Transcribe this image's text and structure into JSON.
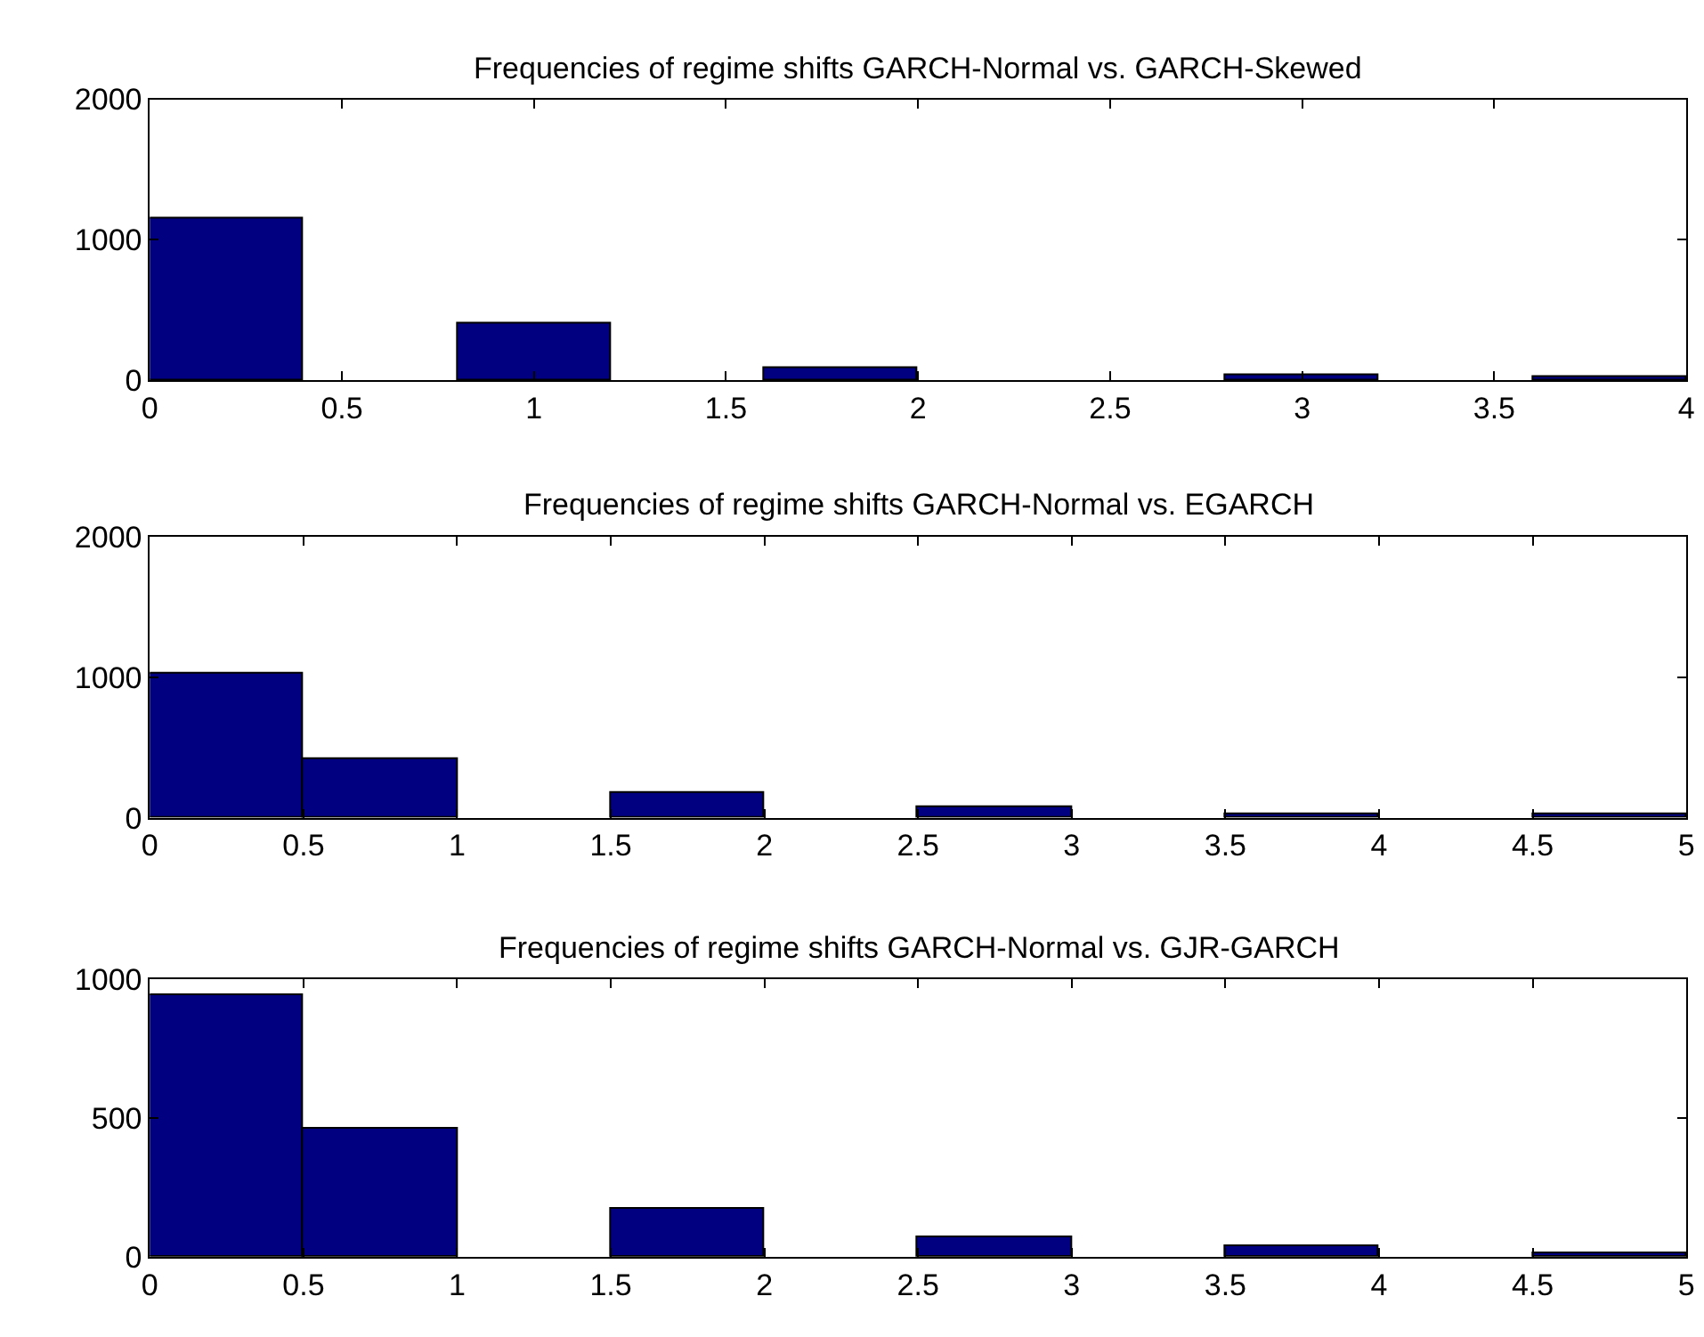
{
  "chart_data": [
    {
      "type": "histogram",
      "title": "Frequencies of regime shifts GARCH-Normal vs. GARCH-Skewed",
      "bins": [
        0,
        0.4,
        0.8,
        1.2,
        1.6,
        2.0,
        2.4,
        2.8,
        3.2,
        3.6,
        4.0
      ],
      "values": [
        1150,
        0,
        400,
        0,
        90,
        0,
        0,
        40,
        0,
        20
      ],
      "color": "#000080",
      "xlim": [
        0,
        4
      ],
      "xticks": [
        0,
        0.5,
        1,
        1.5,
        2,
        2.5,
        3,
        3.5,
        4
      ],
      "ylim": [
        0,
        2000
      ],
      "yticks": [
        0,
        1000,
        2000
      ]
    },
    {
      "type": "histogram",
      "title": "Frequencies of regime shifts GARCH-Normal vs. EGARCH",
      "bins": [
        0,
        0.5,
        1,
        1.5,
        2,
        2.5,
        3,
        3.5,
        4,
        4.5,
        5
      ],
      "values": [
        1020,
        420,
        0,
        170,
        0,
        70,
        0,
        20,
        0,
        20
      ],
      "color": "#000080",
      "xlim": [
        0,
        5
      ],
      "xticks": [
        0,
        0.5,
        1,
        1.5,
        2,
        2.5,
        3,
        3.5,
        4,
        4.5,
        5
      ],
      "ylim": [
        0,
        2000
      ],
      "yticks": [
        0,
        1000,
        2000
      ]
    },
    {
      "type": "histogram",
      "title": "Frequencies of regime shifts GARCH-Normal vs. GJR-GARCH",
      "bins": [
        0,
        0.5,
        1,
        1.5,
        2,
        2.5,
        3,
        3.5,
        4,
        4.5,
        5
      ],
      "values": [
        940,
        460,
        0,
        170,
        0,
        70,
        0,
        35,
        0,
        10
      ],
      "color": "#000080",
      "xlim": [
        0,
        5
      ],
      "xticks": [
        0,
        0.5,
        1,
        1.5,
        2,
        2.5,
        3,
        3.5,
        4,
        4.5,
        5
      ],
      "ylim": [
        0,
        1000
      ],
      "yticks": [
        0,
        500,
        1000
      ]
    }
  ]
}
